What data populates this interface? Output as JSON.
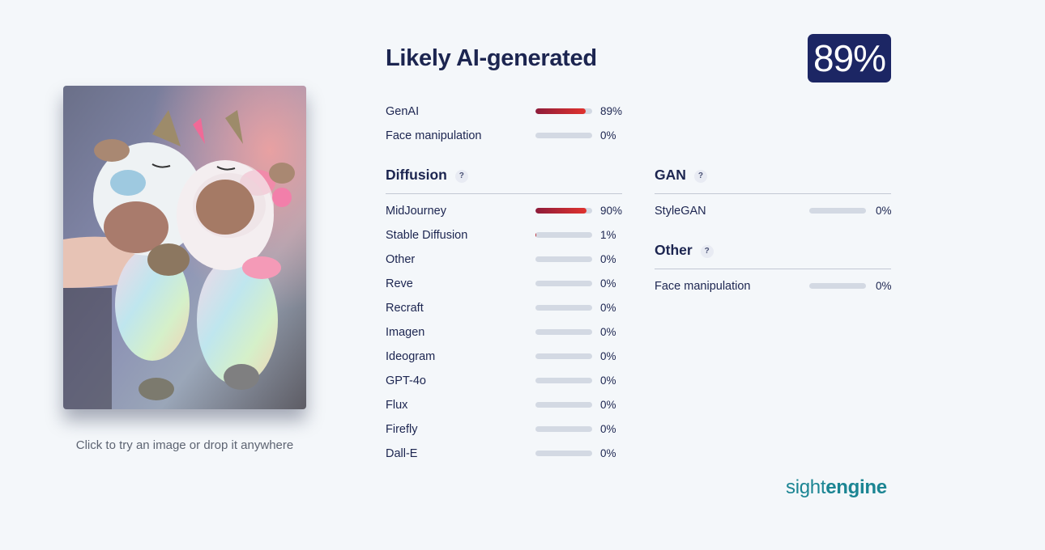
{
  "image_panel": {
    "hint": "Click to try an image or drop it anywhere"
  },
  "header": {
    "verdict": "Likely AI-generated",
    "score": "89%"
  },
  "summary": [
    {
      "label": "GenAI",
      "value": 0.89,
      "pct": "89%"
    },
    {
      "label": "Face manipulation",
      "value": 0.0,
      "pct": "0%"
    }
  ],
  "diffusion": {
    "title": "Diffusion",
    "help": "?",
    "items": [
      {
        "label": "MidJourney",
        "value": 0.9,
        "pct": "90%"
      },
      {
        "label": "Stable Diffusion",
        "value": 0.01,
        "pct": "1%"
      },
      {
        "label": "Other",
        "value": 0.0,
        "pct": "0%"
      },
      {
        "label": "Reve",
        "value": 0.0,
        "pct": "0%"
      },
      {
        "label": "Recraft",
        "value": 0.0,
        "pct": "0%"
      },
      {
        "label": "Imagen",
        "value": 0.0,
        "pct": "0%"
      },
      {
        "label": "Ideogram",
        "value": 0.0,
        "pct": "0%"
      },
      {
        "label": "GPT-4o",
        "value": 0.0,
        "pct": "0%"
      },
      {
        "label": "Flux",
        "value": 0.0,
        "pct": "0%"
      },
      {
        "label": "Firefly",
        "value": 0.0,
        "pct": "0%"
      },
      {
        "label": "Dall-E",
        "value": 0.0,
        "pct": "0%"
      }
    ]
  },
  "gan": {
    "title": "GAN",
    "help": "?",
    "items": [
      {
        "label": "StyleGAN",
        "value": 0.0,
        "pct": "0%"
      }
    ]
  },
  "other": {
    "title": "Other",
    "help": "?",
    "items": [
      {
        "label": "Face manipulation",
        "value": 0.0,
        "pct": "0%"
      }
    ]
  },
  "brand": {
    "part1": "sight",
    "part2": "engine"
  },
  "colors": {
    "accent": "#1c2664",
    "bar_fill": "#d0262e",
    "bar_track": "#d3d9e3",
    "brand": "#1b8593"
  }
}
